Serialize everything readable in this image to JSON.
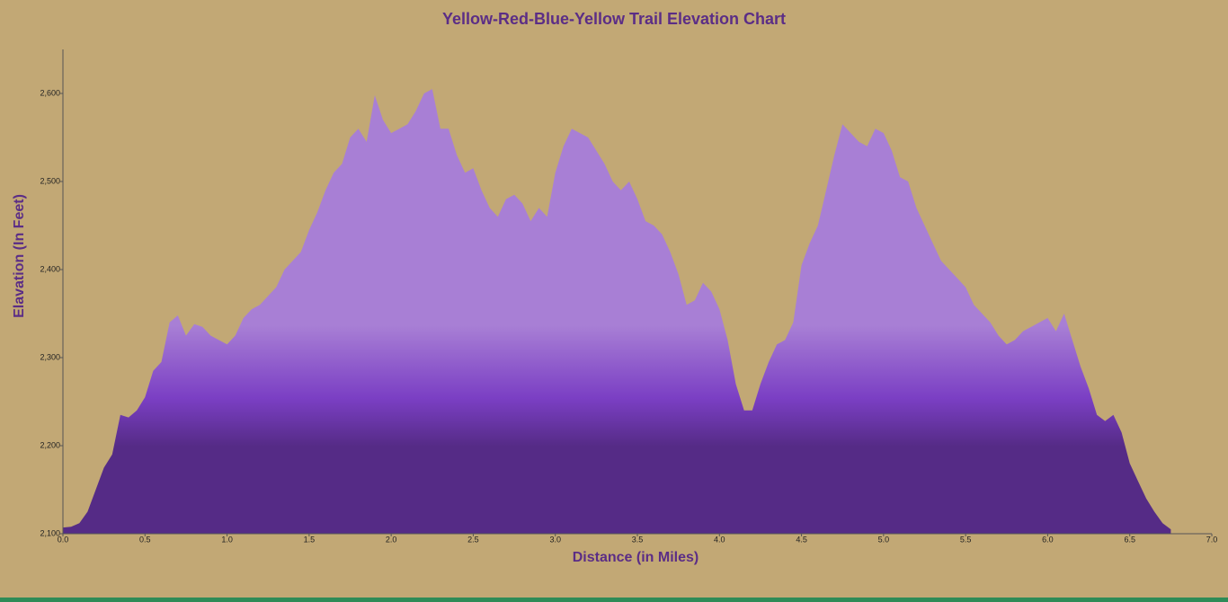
{
  "chart_data": {
    "type": "area",
    "title": "Yellow-Red-Blue-Yellow Trail Elevation Chart",
    "x_label": "Distance (in Miles)",
    "y_label": "Elavation (In Feet)",
    "gradient": [
      "#a87fd5",
      "#7b3fc4",
      "#552b86"
    ],
    "xlim": [
      0,
      7
    ],
    "ylim": [
      2100,
      2650
    ],
    "xticks": [
      {
        "value": 0,
        "label": "0.0"
      },
      {
        "value": 0.5,
        "label": "0.5"
      },
      {
        "value": 1,
        "label": "1.0"
      },
      {
        "value": 1.5,
        "label": "1.5"
      },
      {
        "value": 2,
        "label": "2.0"
      },
      {
        "value": 2.5,
        "label": "2.5"
      },
      {
        "value": 3,
        "label": "3.0"
      },
      {
        "value": 3.5,
        "label": "3.5"
      },
      {
        "value": 4,
        "label": "4.0"
      },
      {
        "value": 4.5,
        "label": "4.5"
      },
      {
        "value": 5,
        "label": "5.0"
      },
      {
        "value": 5.5,
        "label": "5.5"
      },
      {
        "value": 6,
        "label": "6.0"
      },
      {
        "value": 6.5,
        "label": "6.5"
      },
      {
        "value": 7,
        "label": "7.0"
      }
    ],
    "yticks": [
      {
        "value": 2100,
        "label": "2,100"
      },
      {
        "value": 2200,
        "label": "2,200"
      },
      {
        "value": 2300,
        "label": "2,300"
      },
      {
        "value": 2400,
        "label": "2,400"
      },
      {
        "value": 2500,
        "label": "2,500"
      },
      {
        "value": 2600,
        "label": "2,600"
      }
    ],
    "x": [
      0,
      0.05,
      0.1,
      0.15,
      0.2,
      0.25,
      0.3,
      0.35,
      0.4,
      0.45,
      0.5,
      0.55,
      0.6,
      0.65,
      0.7,
      0.75,
      0.8,
      0.85,
      0.9,
      0.95,
      1,
      1.05,
      1.1,
      1.15,
      1.2,
      1.25,
      1.3,
      1.35,
      1.4,
      1.45,
      1.5,
      1.55,
      1.6,
      1.65,
      1.7,
      1.75,
      1.8,
      1.85,
      1.9,
      1.95,
      2,
      2.05,
      2.1,
      2.15,
      2.2,
      2.25,
      2.3,
      2.35,
      2.4,
      2.45,
      2.5,
      2.55,
      2.6,
      2.65,
      2.7,
      2.75,
      2.8,
      2.85,
      2.9,
      2.95,
      3,
      3.05,
      3.1,
      3.15,
      3.2,
      3.25,
      3.3,
      3.35,
      3.4,
      3.45,
      3.5,
      3.55,
      3.6,
      3.65,
      3.7,
      3.75,
      3.8,
      3.85,
      3.9,
      3.95,
      4,
      4.05,
      4.1,
      4.15,
      4.2,
      4.25,
      4.3,
      4.35,
      4.4,
      4.45,
      4.5,
      4.55,
      4.6,
      4.65,
      4.7,
      4.75,
      4.8,
      4.85,
      4.9,
      4.95,
      5,
      5.05,
      5.1,
      5.15,
      5.2,
      5.25,
      5.3,
      5.35,
      5.4,
      5.45,
      5.5,
      5.55,
      5.6,
      5.65,
      5.7,
      5.75,
      5.8,
      5.85,
      5.9,
      5.95,
      6,
      6.05,
      6.1,
      6.15,
      6.2,
      6.25,
      6.3,
      6.35,
      6.4,
      6.45,
      6.5,
      6.55,
      6.6,
      6.65,
      6.7,
      6.75
    ],
    "values": [
      2107,
      2108,
      2112,
      2125,
      2150,
      2175,
      2190,
      2235,
      2232,
      2240,
      2255,
      2285,
      2295,
      2340,
      2348,
      2325,
      2338,
      2335,
      2325,
      2320,
      2315,
      2325,
      2345,
      2355,
      2360,
      2370,
      2380,
      2400,
      2410,
      2420,
      2445,
      2465,
      2490,
      2510,
      2520,
      2550,
      2560,
      2545,
      2598,
      2570,
      2555,
      2560,
      2565,
      2580,
      2600,
      2605,
      2560,
      2560,
      2530,
      2510,
      2515,
      2490,
      2470,
      2460,
      2480,
      2485,
      2475,
      2455,
      2470,
      2460,
      2510,
      2540,
      2560,
      2555,
      2550,
      2535,
      2520,
      2500,
      2490,
      2500,
      2480,
      2455,
      2450,
      2440,
      2420,
      2395,
      2360,
      2365,
      2385,
      2375,
      2355,
      2320,
      2270,
      2240,
      2240,
      2270,
      2295,
      2315,
      2320,
      2340,
      2405,
      2430,
      2450,
      2490,
      2530,
      2565,
      2555,
      2545,
      2540,
      2560,
      2555,
      2535,
      2505,
      2500,
      2470,
      2450,
      2430,
      2410,
      2400,
      2390,
      2380,
      2360,
      2350,
      2340,
      2325,
      2315,
      2320,
      2330,
      2335,
      2340,
      2345,
      2330,
      2350,
      2320,
      2290,
      2265,
      2235,
      2228,
      2235,
      2215,
      2180,
      2160,
      2140,
      2125,
      2112,
      2105
    ]
  }
}
